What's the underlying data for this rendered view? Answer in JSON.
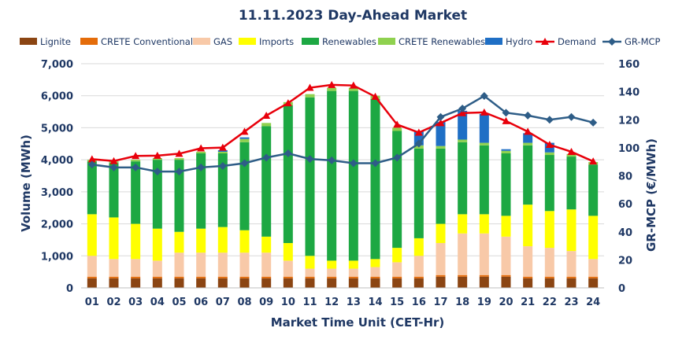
{
  "chart_data": {
    "type": "bar",
    "title": "11.11.2023  Day-Ahead Market",
    "xlabel": "Market Time Unit (CET-Hr)",
    "ylabel": "Volume (MWh)",
    "y2label": "GR-MCP (€/MWh)",
    "ylim": [
      0,
      7000
    ],
    "y2lim": [
      0,
      160
    ],
    "yticks": [
      0,
      1000,
      2000,
      3000,
      4000,
      5000,
      6000,
      7000
    ],
    "yticklabels": [
      "0",
      "1,000",
      "2,000",
      "3,000",
      "4,000",
      "5,000",
      "6,000",
      "7,000"
    ],
    "y2ticks": [
      0,
      20,
      40,
      60,
      80,
      100,
      120,
      140,
      160
    ],
    "y2ticklabels": [
      "0",
      "20",
      "40",
      "60",
      "80",
      "100",
      "120",
      "140",
      "160"
    ],
    "categories": [
      "01",
      "02",
      "03",
      "04",
      "05",
      "06",
      "07",
      "08",
      "09",
      "10",
      "11",
      "12",
      "13",
      "14",
      "15",
      "16",
      "17",
      "18",
      "19",
      "20",
      "21",
      "22",
      "23",
      "24"
    ],
    "legend_position": "top",
    "grid": true,
    "stacked_series": [
      {
        "name": "Lignite",
        "color": "#8B4513",
        "values": [
          300,
          300,
          300,
          300,
          300,
          300,
          300,
          300,
          300,
          300,
          300,
          300,
          300,
          300,
          300,
          300,
          350,
          350,
          350,
          350,
          300,
          300,
          300,
          300
        ]
      },
      {
        "name": "CRETE Conventional",
        "color": "#E46C0A",
        "values": [
          50,
          50,
          50,
          50,
          50,
          50,
          50,
          50,
          50,
          50,
          50,
          50,
          50,
          50,
          50,
          50,
          50,
          50,
          50,
          50,
          50,
          50,
          50,
          50
        ]
      },
      {
        "name": "GAS",
        "color": "#F8C9A8",
        "values": [
          650,
          550,
          550,
          500,
          750,
          750,
          750,
          750,
          750,
          500,
          250,
          250,
          250,
          300,
          450,
          650,
          1000,
          1300,
          1300,
          1200,
          950,
          900,
          800,
          550
        ]
      },
      {
        "name": "Imports",
        "color": "#FFFF00",
        "values": [
          1300,
          1300,
          1100,
          1000,
          650,
          750,
          800,
          700,
          500,
          550,
          400,
          250,
          250,
          250,
          450,
          550,
          600,
          600,
          600,
          650,
          1300,
          1150,
          1300,
          1350
        ]
      },
      {
        "name": "Renewables",
        "color": "#1DA843",
        "values": [
          1650,
          1700,
          1950,
          2150,
          2250,
          2350,
          2300,
          2750,
          3450,
          4300,
          4950,
          5300,
          5300,
          5000,
          3650,
          2800,
          2350,
          2250,
          2150,
          1950,
          1850,
          1750,
          1650,
          1600
        ]
      },
      {
        "name": "CRETE Renewables",
        "color": "#8FD14F",
        "values": [
          50,
          50,
          50,
          50,
          50,
          50,
          50,
          100,
          100,
          100,
          100,
          100,
          100,
          100,
          100,
          100,
          80,
          80,
          80,
          80,
          80,
          80,
          80,
          80
        ]
      },
      {
        "name": "Hydro",
        "color": "#1F6FC5",
        "values": [
          0,
          0,
          0,
          0,
          0,
          0,
          50,
          50,
          0,
          0,
          0,
          0,
          0,
          0,
          0,
          450,
          750,
          900,
          900,
          50,
          300,
          300,
          0,
          0
        ]
      }
    ],
    "line_series": [
      {
        "name": "Demand",
        "axis": "left",
        "color": "#E8000B",
        "marker": "triangle",
        "values": [
          4020,
          3960,
          4120,
          4130,
          4190,
          4360,
          4380,
          4880,
          5380,
          5770,
          6250,
          6340,
          6320,
          5970,
          5100,
          4850,
          5150,
          5460,
          5480,
          5210,
          4880,
          4470,
          4250,
          3950
        ]
      },
      {
        "name": "GR-MCP",
        "axis": "right",
        "color": "#2E5D87",
        "marker": "diamond",
        "values": [
          88,
          86,
          86,
          83,
          83,
          86,
          87,
          89,
          93,
          96,
          92,
          91,
          89,
          89,
          93,
          103,
          122,
          128,
          137,
          125,
          123,
          120,
          122,
          118
        ]
      }
    ]
  }
}
